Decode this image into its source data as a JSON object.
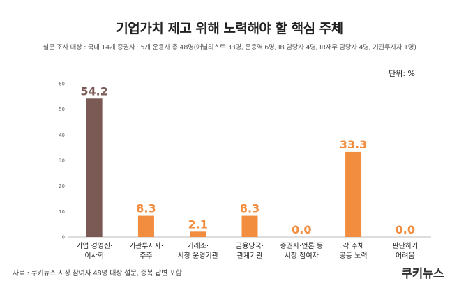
{
  "title": "기업가치 제고 위해 노력해야 할 핵심 주체",
  "subtitle": "설문 조사 대상 : 국내 14개 증권사 · 5개 운용사 총 48명(애널리스트 33명,  운용역 6명, IB 담당자  4명, IR재무 담당자 4명, 기관투자자 1명)",
  "unit_label": "단위: %",
  "source": "자료 : 쿠키뉴스 시장 참여자 48명 대상 설문, 중복 답변 포함",
  "brand": "쿠키뉴스",
  "colors": {
    "highlight": "#7b5a55",
    "bar": "#f28c3f",
    "axis": "#bbbbbb"
  },
  "chart_data": {
    "type": "bar",
    "categories": [
      [
        "기업 경영진·",
        "이사회"
      ],
      [
        "기관투자자·",
        "주주"
      ],
      [
        "거래소·",
        "시장 운영기관"
      ],
      [
        "금융당국·",
        "관계기관"
      ],
      [
        "증권사·언론 등",
        "시장 참여자"
      ],
      [
        "각 주체",
        "공동 노력"
      ],
      [
        "판단하기",
        "어려움"
      ]
    ],
    "values": [
      54.2,
      8.3,
      2.1,
      8.3,
      0.0,
      33.3,
      0.0
    ],
    "value_labels": [
      "54.2",
      "8.3",
      "2.1",
      "8.3",
      "0.0",
      "33.3",
      "0.0"
    ],
    "highlight_index": 0,
    "ylim": [
      0,
      60
    ],
    "yticks": [
      "0",
      "10",
      "20",
      "30",
      "40",
      "50",
      "60"
    ],
    "grid": false
  }
}
